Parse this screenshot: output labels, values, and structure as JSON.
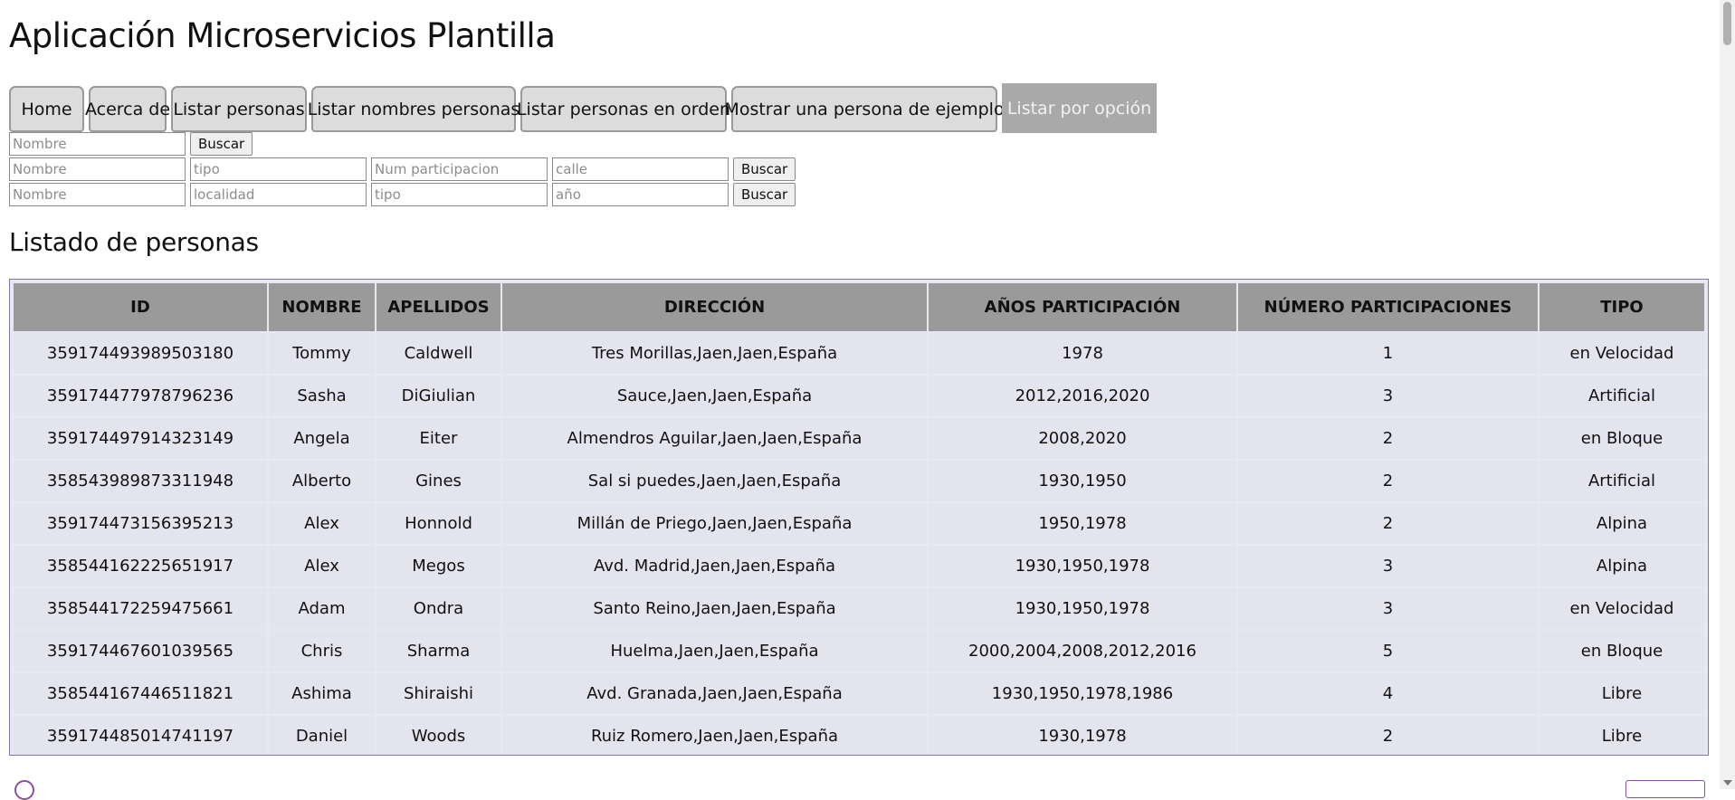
{
  "app": {
    "title": "Aplicación Microservicios Plantilla"
  },
  "nav": [
    {
      "label": "Home",
      "active": false
    },
    {
      "label": "Acerca de",
      "active": false
    },
    {
      "label": "Listar personas",
      "active": false
    },
    {
      "label": "Listar nombres personas",
      "active": false
    },
    {
      "label": "Listar personas en orden",
      "active": false
    },
    {
      "label": "Mostrar una persona de ejemplo",
      "active": false
    },
    {
      "label": "Listar por opción",
      "active": true
    }
  ],
  "forms": {
    "row1": {
      "nombre_placeholder": "Nombre",
      "button": "Buscar"
    },
    "row2": {
      "nombre_placeholder": "Nombre",
      "tipo_placeholder": "tipo",
      "num_placeholder": "Num participacion",
      "calle_placeholder": "calle",
      "button": "Buscar"
    },
    "row3": {
      "nombre_placeholder": "Nombre",
      "localidad_placeholder": "localidad",
      "tipo_placeholder": "tipo",
      "anio_placeholder": "año",
      "button": "Buscar"
    }
  },
  "section": {
    "title": "Listado de personas"
  },
  "table": {
    "headers": [
      "ID",
      "NOMBRE",
      "APELLIDOS",
      "DIRECCIÓN",
      "AÑOS PARTICIPACIÓN",
      "NÚMERO PARTICIPACIONES",
      "TIPO"
    ],
    "rows": [
      [
        "359174493989503180",
        "Tommy",
        "Caldwell",
        "Tres Morillas,Jaen,Jaen,España",
        "1978",
        "1",
        "en Velocidad"
      ],
      [
        "359174477978796236",
        "Sasha",
        "DiGiulian",
        "Sauce,Jaen,Jaen,España",
        "2012,2016,2020",
        "3",
        "Artificial"
      ],
      [
        "359174497914323149",
        "Angela",
        "Eiter",
        "Almendros Aguilar,Jaen,Jaen,España",
        "2008,2020",
        "2",
        "en Bloque"
      ],
      [
        "358543989873311948",
        "Alberto",
        "Gines",
        "Sal si puedes,Jaen,Jaen,España",
        "1930,1950",
        "2",
        "Artificial"
      ],
      [
        "359174473156395213",
        "Alex",
        "Honnold",
        "Millán de Priego,Jaen,Jaen,España",
        "1950,1978",
        "2",
        "Alpina"
      ],
      [
        "358544162225651917",
        "Alex",
        "Megos",
        "Avd. Madrid,Jaen,Jaen,España",
        "1930,1950,1978",
        "3",
        "Alpina"
      ],
      [
        "358544172259475661",
        "Adam",
        "Ondra",
        "Santo Reino,Jaen,Jaen,España",
        "1930,1950,1978",
        "3",
        "en Velocidad"
      ],
      [
        "359174467601039565",
        "Chris",
        "Sharma",
        "Huelma,Jaen,Jaen,España",
        "2000,2004,2008,2012,2016",
        "5",
        "en Bloque"
      ],
      [
        "358544167446511821",
        "Ashima",
        "Shiraishi",
        "Avd. Granada,Jaen,Jaen,España",
        "1930,1950,1978,1986",
        "4",
        "Libre"
      ],
      [
        "359174485014741197",
        "Daniel",
        "Woods",
        "Ruiz Romero,Jaen,Jaen,España",
        "1930,1978",
        "2",
        "Libre"
      ]
    ]
  }
}
